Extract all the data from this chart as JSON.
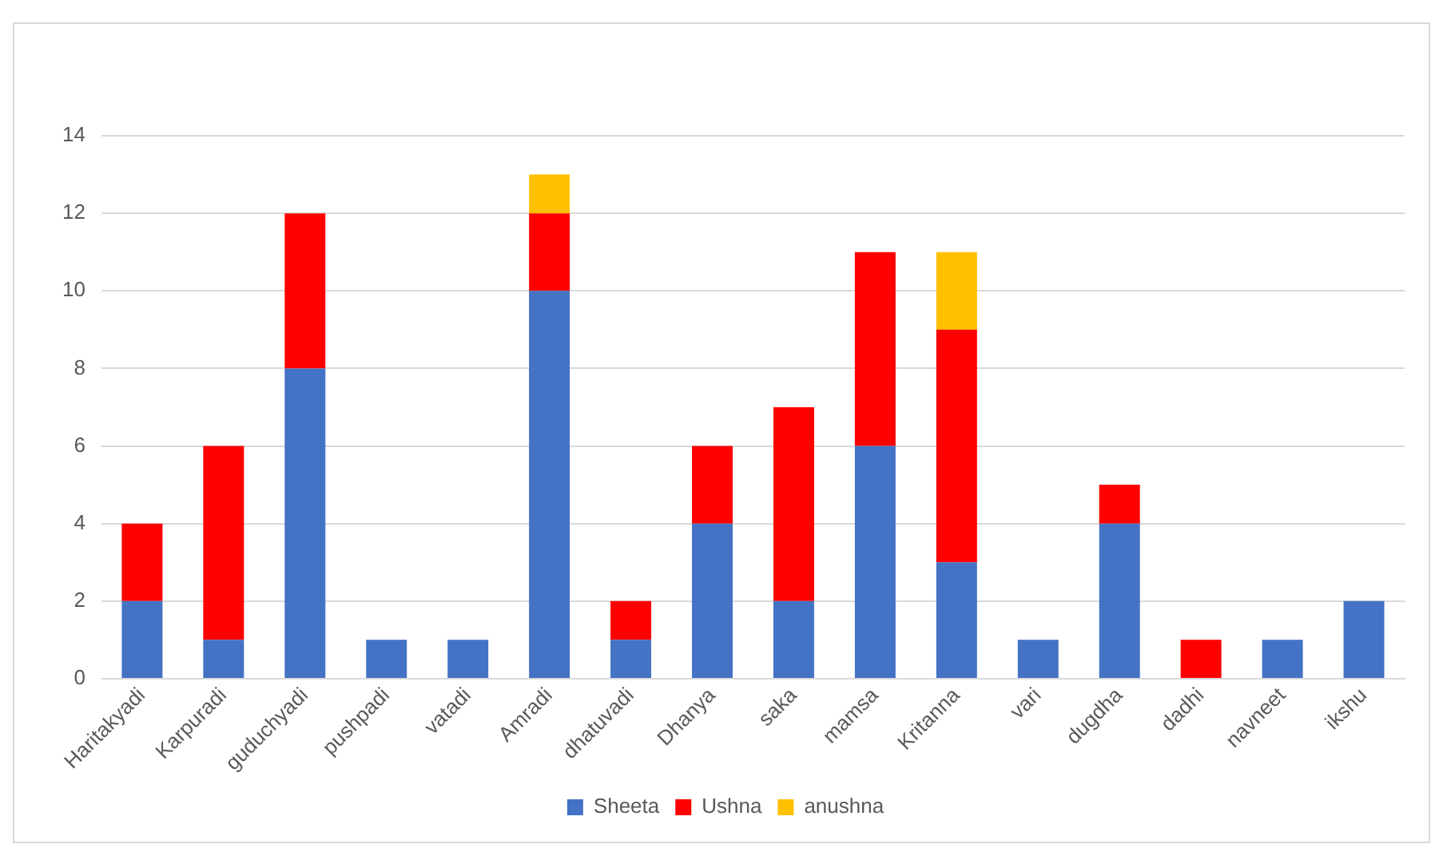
{
  "chart_data": {
    "type": "bar",
    "stacked": true,
    "categories": [
      "Haritakyadi",
      "Karpuradi",
      "guduchyadi",
      "pushpadi",
      "vatadi",
      "Amradi",
      "dhatuvadi",
      "Dhanya",
      "saka",
      "mamsa",
      "Kritanna",
      "vari",
      "dugdha",
      "dadhi",
      "navneet",
      "ikshu"
    ],
    "series": [
      {
        "name": "Sheeta",
        "color": "#4472c4",
        "values": [
          2,
          1,
          8,
          1,
          1,
          10,
          1,
          4,
          2,
          6,
          3,
          1,
          4,
          0,
          1,
          2
        ]
      },
      {
        "name": "Ushna",
        "color": "#ff0000",
        "values": [
          2,
          5,
          4,
          0,
          0,
          2,
          1,
          2,
          5,
          5,
          6,
          0,
          1,
          1,
          0,
          0
        ]
      },
      {
        "name": "anushna",
        "color": "#ffc000",
        "values": [
          0,
          0,
          0,
          0,
          0,
          1,
          0,
          0,
          0,
          0,
          2,
          0,
          0,
          0,
          0,
          0
        ]
      }
    ],
    "ylim": [
      0,
      14
    ],
    "yticks": [
      0,
      2,
      4,
      6,
      8,
      10,
      12,
      14
    ],
    "grid": "y",
    "legend": "bottom"
  }
}
